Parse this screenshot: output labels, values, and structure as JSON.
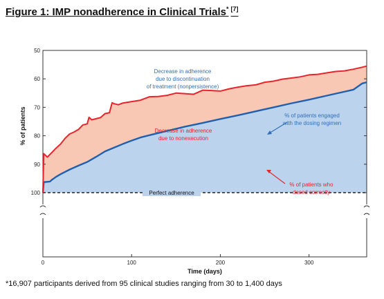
{
  "figure": {
    "title": "Figure 1: IMP nonadherence in Clinical Trials",
    "title_mark": "*",
    "reference": "[7]",
    "footnote": "*16,907 participants derived from 95 clinical studies ranging from 30 to 1,400 days"
  },
  "colors": {
    "engaged_line": "#1f5fae",
    "correct_line": "#e8242b",
    "blue_fill": "#bcd3ee",
    "salmon_fill": "#f9c8b4",
    "perfect_line": "#222222",
    "annotation_blue": "#2f6fb8",
    "annotation_red": "#e8242b"
  },
  "chart_data": {
    "type": "area",
    "xlabel": "Time (days)",
    "ylabel": "% of patients",
    "xlim": [
      0,
      365
    ],
    "ylim": [
      50,
      100
    ],
    "xticks": [
      0,
      100,
      200,
      300
    ],
    "yticks": [
      50,
      60,
      70,
      80,
      90,
      100
    ],
    "axis_break": true,
    "grid": false,
    "reference_line": {
      "y": 100,
      "label": "Perfect adherence"
    },
    "series": [
      {
        "name": "% of patients engaged with the dosing regimen",
        "x": [
          0,
          1,
          8,
          10,
          15,
          20,
          30,
          40,
          50,
          60,
          70,
          80,
          90,
          100,
          110,
          120,
          140,
          160,
          180,
          200,
          220,
          240,
          260,
          280,
          300,
          320,
          340,
          350,
          360,
          365
        ],
        "y": [
          100,
          96.3,
          96.1,
          95.5,
          94.4,
          93.5,
          91.9,
          90.5,
          89.2,
          87.4,
          85.5,
          84.2,
          82.9,
          81.7,
          80.6,
          79.8,
          78.3,
          76.8,
          75.5,
          74.1,
          72.8,
          71.4,
          70.0,
          68.6,
          67.3,
          65.9,
          64.5,
          63.8,
          61.6,
          61.2
        ]
      },
      {
        "name": "% of patients who dosed correctly",
        "x": [
          0,
          1,
          5,
          10,
          15,
          20,
          25,
          30,
          35,
          40,
          45,
          50,
          52,
          55,
          60,
          65,
          70,
          75,
          78,
          80,
          85,
          90,
          100,
          110,
          120,
          130,
          140,
          150,
          160,
          170,
          180,
          190,
          200,
          210,
          220,
          230,
          240,
          250,
          260,
          270,
          280,
          290,
          300,
          310,
          320,
          330,
          340,
          350,
          360,
          365
        ],
        "y": [
          100,
          86.3,
          87.5,
          85.9,
          84.3,
          82.9,
          80.9,
          79.4,
          78.7,
          77.8,
          76.2,
          75.8,
          73.5,
          74.4,
          74.0,
          73.6,
          72.2,
          71.9,
          68.4,
          68.7,
          69.1,
          68.5,
          68.0,
          67.5,
          66.3,
          66.2,
          65.8,
          65.0,
          65.2,
          65.4,
          64.0,
          64.1,
          64.3,
          63.5,
          62.9,
          62.4,
          62.1,
          61.2,
          60.8,
          60.1,
          59.7,
          59.3,
          58.6,
          58.4,
          57.9,
          57.4,
          57.2,
          56.6,
          55.9,
          55.5
        ]
      }
    ],
    "annotations": {
      "blue_region": [
        "Decrease in adherence",
        "due to discontinuation",
        "of treatment (nonpersistence)"
      ],
      "red_region": [
        "Decrease in adherence",
        "due to nonexecution"
      ],
      "engaged_label": [
        "% of patients engaged",
        "with  the dosing regimen"
      ],
      "correct_label": [
        "% of patients who",
        "dosed correctly"
      ]
    }
  }
}
